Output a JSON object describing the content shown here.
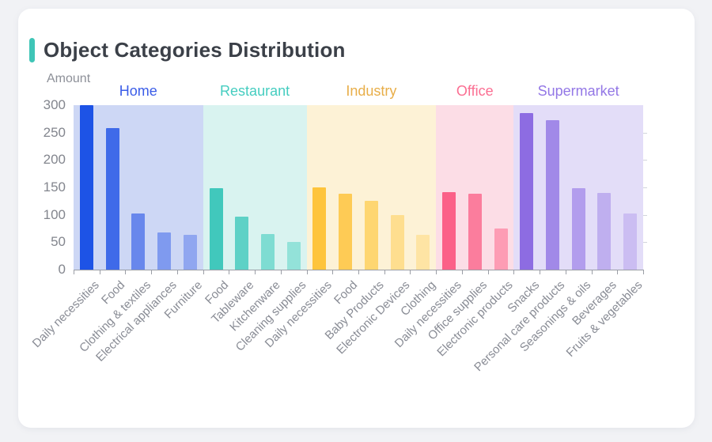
{
  "card": {
    "title": "Object Categories Distribution",
    "accent_color": "#3fc5b7"
  },
  "chart_data": {
    "type": "bar",
    "title": "Object Categories Distribution",
    "ylabel": "Amount",
    "xlabel": "",
    "ylim": [
      0,
      300
    ],
    "yticks": [
      0,
      50,
      100,
      150,
      200,
      250,
      300
    ],
    "grid": false,
    "legend_position": "group labels above colored background bands",
    "axis_color": "#9b9ea6",
    "tick_label_color": "#83868e",
    "x_label_color": "#898c95",
    "groups": [
      {
        "name": "Home",
        "label_color": "#3b5de8",
        "band_color": "#cdd7f5",
        "bars": [
          {
            "category": "Daily necessities",
            "value": 300,
            "color": "#1d53e6"
          },
          {
            "category": "Food",
            "value": 258,
            "color": "#3f6ae9"
          },
          {
            "category": "Clothing & textiles",
            "value": 102,
            "color": "#6887ec"
          },
          {
            "category": "Electrical appliances",
            "value": 68,
            "color": "#7f9aef"
          },
          {
            "category": "Furniture",
            "value": 63,
            "color": "#90a6f0"
          }
        ]
      },
      {
        "name": "Restaurant",
        "label_color": "#45cdc0",
        "band_color": "#d9f3f0",
        "bars": [
          {
            "category": "Food",
            "value": 148,
            "color": "#41c8bc"
          },
          {
            "category": "Tableware",
            "value": 97,
            "color": "#5ed1c6"
          },
          {
            "category": "Kitchenware",
            "value": 65,
            "color": "#7edcd2"
          },
          {
            "category": "Cleaning supplies",
            "value": 51,
            "color": "#93e2d9"
          }
        ]
      },
      {
        "name": "Industry",
        "label_color": "#e8ae49",
        "band_color": "#fdf2d6",
        "bars": [
          {
            "category": "Daily necessities",
            "value": 150,
            "color": "#fec43c"
          },
          {
            "category": "Food",
            "value": 138,
            "color": "#fecb55"
          },
          {
            "category": "Baby Products",
            "value": 126,
            "color": "#fed671"
          },
          {
            "category": "Electronic Devices",
            "value": 99,
            "color": "#fede8f"
          },
          {
            "category": "Clothing",
            "value": 63,
            "color": "#fee4a4"
          }
        ]
      },
      {
        "name": "Office",
        "label_color": "#fb6e92",
        "band_color": "#fcdde6",
        "bars": [
          {
            "category": "Daily necessities",
            "value": 142,
            "color": "#fb6088"
          },
          {
            "category": "Office supplies",
            "value": 138,
            "color": "#fb7d9d"
          },
          {
            "category": "Electronic products",
            "value": 75,
            "color": "#fd9cb4"
          }
        ]
      },
      {
        "name": "Supermarket",
        "label_color": "#9377e6",
        "band_color": "#e3ddf8",
        "bars": [
          {
            "category": "Snacks",
            "value": 285,
            "color": "#8d6ce2"
          },
          {
            "category": "Personal care products",
            "value": 272,
            "color": "#a189e8"
          },
          {
            "category": "Seasonings & oils",
            "value": 148,
            "color": "#b29ded"
          },
          {
            "category": "Beverages",
            "value": 140,
            "color": "#bfafef"
          },
          {
            "category": "Fruits & vegetables",
            "value": 102,
            "color": "#cbbdf2"
          }
        ]
      }
    ]
  }
}
